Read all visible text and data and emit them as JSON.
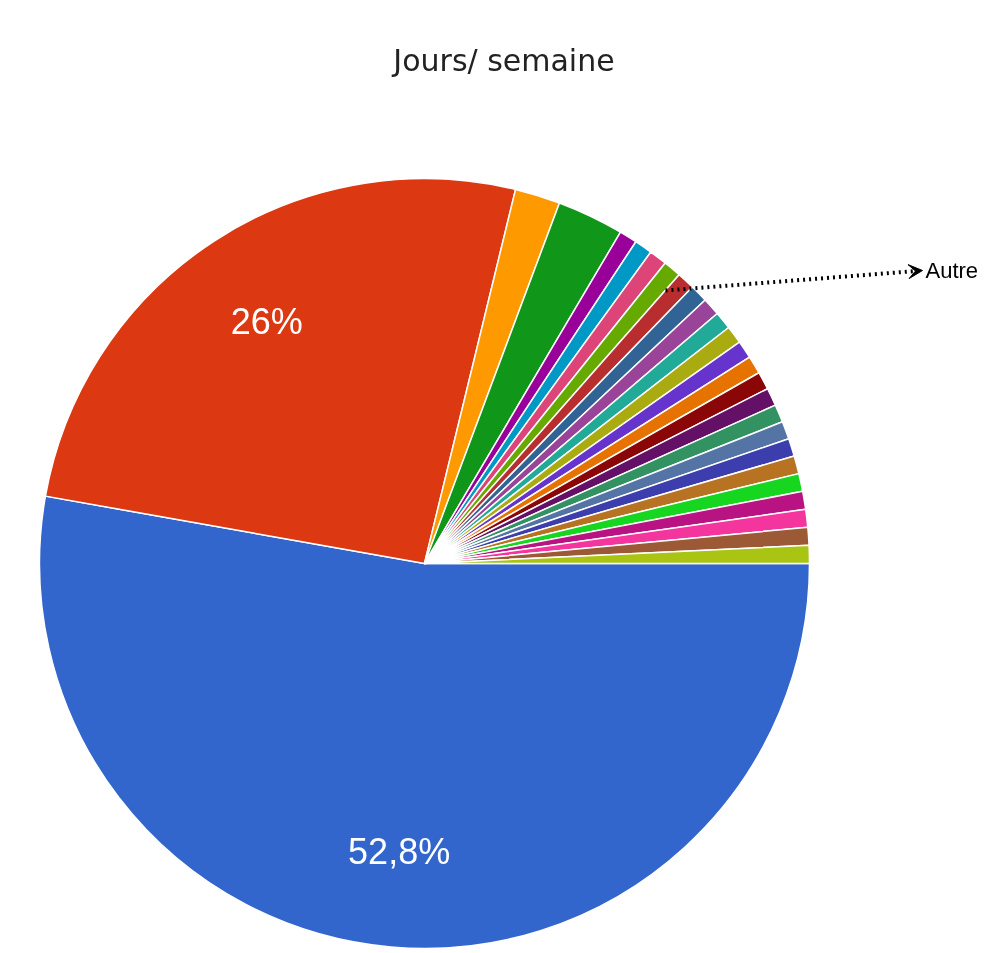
{
  "chart_data": {
    "type": "pie",
    "title": "Jours/ semaine",
    "categories": [
      null,
      null,
      null,
      null,
      null,
      null,
      null,
      null,
      null,
      null,
      null,
      null,
      null,
      null,
      null,
      null,
      null,
      null,
      null,
      null,
      null,
      null,
      null,
      null,
      null,
      null
    ],
    "values": [
      52.8,
      26,
      1.9,
      2.8,
      0.75,
      0.75,
      0.75,
      0.75,
      0.75,
      0.75,
      0.75,
      0.75,
      0.75,
      0.75,
      0.75,
      0.75,
      0.75,
      0.75,
      0.75,
      0.75,
      0.75,
      0.75,
      0.75,
      0.75,
      0.75,
      0.75
    ],
    "colors": [
      "#3366cc",
      "#dc3912",
      "#ff9900",
      "#109618",
      "#990099",
      "#0099c6",
      "#dd4477",
      "#66aa00",
      "#b82e2e",
      "#316395",
      "#994499",
      "#22aa99",
      "#aaaa11",
      "#6633cc",
      "#e67300",
      "#8b0707",
      "#651067",
      "#329262",
      "#5574a6",
      "#3b3eac",
      "#b77322",
      "#16d620",
      "#b91383",
      "#f4359e",
      "#9c5935",
      "#a9c413"
    ],
    "value_labels": [
      "52,8%",
      "26%",
      null,
      null,
      null,
      null,
      null,
      null,
      null,
      null,
      null,
      null,
      null,
      null,
      null,
      null,
      null,
      null,
      null,
      null,
      null,
      null,
      null,
      null,
      null,
      null
    ],
    "annotations": [
      "Autre"
    ]
  }
}
